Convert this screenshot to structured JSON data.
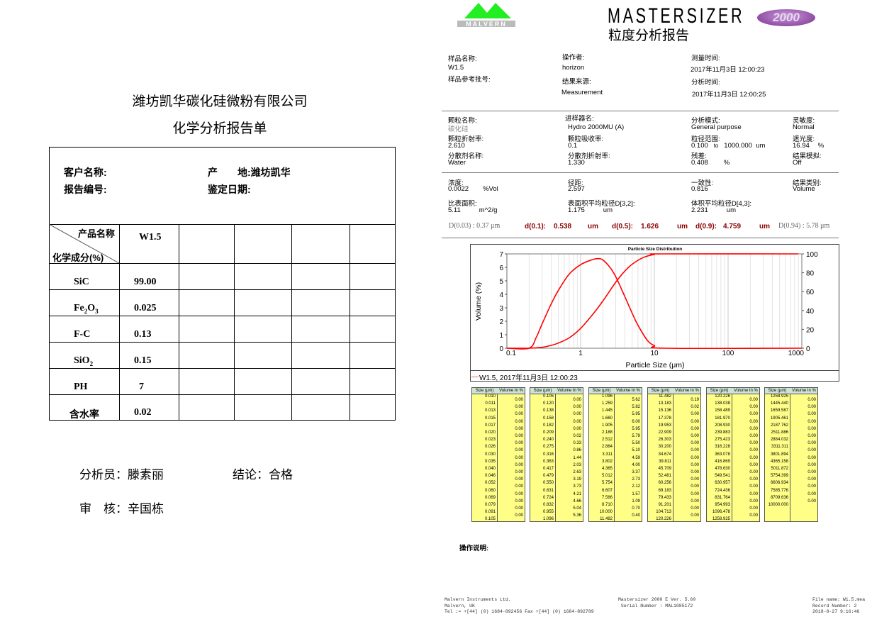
{
  "left": {
    "company": "潍坊凯华碳化硅微粉有限公司",
    "title": "化学分析报告单",
    "customer_label": "客户名称:",
    "report_no_label": "报告编号:",
    "origin_label": "产　　地:",
    "origin_value": "潍坊凯华",
    "date_label": "鉴定日期:",
    "header_product": "产品名称",
    "header_component": "化学成分(%)",
    "product": "W1.5",
    "rows": [
      {
        "name": "SiC",
        "value": "99.00"
      },
      {
        "name": "Fe2O3",
        "value": "0.025"
      },
      {
        "name": "F-C",
        "value": "0.13"
      },
      {
        "name": "SiO2",
        "value": "0.15"
      },
      {
        "name": "PH",
        "value": "7"
      },
      {
        "name": "含水率",
        "value": "0.02"
      }
    ],
    "analyst": "分析员：滕素丽",
    "conclusion": "结论：合格",
    "reviewer": "审　核：辛国栋"
  },
  "right": {
    "logo_text": "MALVERN",
    "brand": "MASTERSIZER",
    "brand_badge": "2000",
    "title": "粒度分析报告",
    "sample_name_label": "样品名称:",
    "sample_name": "W1.5",
    "sample_batch_label": "样品参考批号:",
    "operator_label": "操作者:",
    "operator": "horizon",
    "source_label": "结果来源:",
    "source": "Measurement",
    "measure_time_label": "测量时间:",
    "measure_time": "2017年11月3日 12:00:23",
    "analysis_time_label": "分析时间:",
    "analysis_time": "2017年11月3日 12:00:25",
    "particle_name_label": "颗粒名称:",
    "particle_name": "碳化硅",
    "accessory_label": "进样器名:",
    "accessory": "Hydro 2000MU (A)",
    "model_label": "分析模式:",
    "model": "General purpose",
    "sensitivity_label": "灵敏度:",
    "sensitivity": "Normal",
    "particle_ri_label": "颗粒折射率:",
    "particle_ri": "2.610",
    "absorption_label": "颗粒吸收率:",
    "absorption": "0.1",
    "size_range_label": "粒径范围:",
    "size_range_from": "0.100",
    "size_range_to_word": "to",
    "size_range_to": "1000.000",
    "size_range_unit": "um",
    "obscuration_label": "遮光度:",
    "obscuration": "16.94",
    "obscuration_unit": "%",
    "dispersant_label": "分散剂名称:",
    "dispersant": "Water",
    "dispersant_ri_label": "分散剂折射率:",
    "dispersant_ri": "1.330",
    "residual_label": "残差:",
    "residual": "0.408",
    "residual_unit": "%",
    "emulation_label": "结果模拟:",
    "emulation": "Off",
    "concentration_label": "浓度:",
    "concentration": "0.0022",
    "concentration_unit": "%Vol",
    "span_label": "径距:",
    "span": "2.597",
    "uniformity_label": "一致性:",
    "uniformity": "0.816",
    "result_units_label": "结果类别:",
    "result_units": "Volume",
    "ssa_label": "比表面积:",
    "ssa": "5.11",
    "ssa_unit": "m^2/g",
    "d32_label": "表面积平均粒径D[3,2]:",
    "d32": "1.175",
    "d32_unit": "um",
    "d43_label": "体积平均粒径D[4,3]:",
    "d43": "2.231",
    "d43_unit": "um",
    "d003": "D(0.03) : 0.37 μm",
    "d01_label": "d(0.1):",
    "d01": "0.538",
    "d05_label": "d(0.5):",
    "d05": "1.626",
    "d09_label": "d(0.9):",
    "d09": "4.759",
    "d_unit": "um",
    "d094": "D(0.94) : 5.78 μm",
    "notes_label": "操作说明:",
    "footer": {
      "col1": [
        "Malvern Instruments Ltd.",
        "Malvern, UK",
        "Tel := +[44] (0) 1684-892456 Fax +[44] (0) 1684-892789"
      ],
      "col2": [
        "Mastersizer 2000 E Ver. 5.60",
        "Serial Number : MAL1085172"
      ],
      "col3": [
        "File name: W1.5.mea",
        "Record Number: 2",
        "2018-8-27 9:16:46"
      ]
    },
    "table_headers": [
      "Size (μm)",
      "Volume In %"
    ],
    "tables": [
      {
        "sizes": [
          "0.010",
          "0.011",
          "0.013",
          "0.015",
          "0.017",
          "0.020",
          "0.023",
          "0.026",
          "0.030",
          "0.035",
          "0.040",
          "0.046",
          "0.052",
          "0.060",
          "0.069",
          "0.079",
          "0.091",
          "0.105"
        ],
        "volumes": [
          "0.00",
          "0.00",
          "0.00",
          "0.00",
          "0.00",
          "0.00",
          "0.00",
          "0.00",
          "0.00",
          "0.00",
          "0.00",
          "0.00",
          "0.00",
          "0.00",
          "0.00",
          "0.00",
          "0.00"
        ]
      },
      {
        "sizes": [
          "0.105",
          "0.120",
          "0.138",
          "0.158",
          "0.182",
          "0.209",
          "0.240",
          "0.275",
          "0.316",
          "0.363",
          "0.417",
          "0.479",
          "0.550",
          "0.631",
          "0.724",
          "0.832",
          "0.955",
          "1.096"
        ],
        "volumes": [
          "0.00",
          "0.00",
          "0.00",
          "0.00",
          "0.00",
          "0.02",
          "0.33",
          "0.86",
          "1.44",
          "2.03",
          "2.63",
          "3.19",
          "3.73",
          "4.21",
          "4.66",
          "5.04",
          "5.36"
        ]
      },
      {
        "sizes": [
          "1.096",
          "1.259",
          "1.445",
          "1.660",
          "1.905",
          "2.188",
          "2.512",
          "2.884",
          "3.311",
          "3.802",
          "4.365",
          "5.012",
          "5.754",
          "6.607",
          "7.586",
          "8.710",
          "10.000",
          "11.482"
        ],
        "volumes": [
          "5.62",
          "5.82",
          "5.95",
          "6.00",
          "5.95",
          "5.79",
          "5.50",
          "5.10",
          "4.59",
          "4.00",
          "3.37",
          "2.73",
          "2.12",
          "1.57",
          "1.09",
          "0.70",
          "0.40"
        ]
      },
      {
        "sizes": [
          "11.482",
          "13.183",
          "15.136",
          "17.378",
          "19.953",
          "22.909",
          "26.303",
          "30.200",
          "34.674",
          "39.811",
          "45.709",
          "52.481",
          "60.256",
          "69.183",
          "79.433",
          "91.201",
          "104.713",
          "120.226"
        ],
        "volumes": [
          "0.19",
          "0.02",
          "0.00",
          "0.00",
          "0.00",
          "0.00",
          "0.00",
          "0.00",
          "0.00",
          "0.00",
          "0.00",
          "0.00",
          "0.00",
          "0.00",
          "0.00",
          "0.00",
          "0.00"
        ]
      },
      {
        "sizes": [
          "120.226",
          "138.038",
          "158.489",
          "181.970",
          "208.930",
          "239.883",
          "275.423",
          "316.228",
          "363.078",
          "416.869",
          "478.630",
          "549.541",
          "630.957",
          "724.436",
          "831.764",
          "954.993",
          "1096.478",
          "1258.925"
        ],
        "volumes": [
          "0.00",
          "0.00",
          "0.00",
          "0.00",
          "0.00",
          "0.00",
          "0.00",
          "0.00",
          "0.00",
          "0.00",
          "0.00",
          "0.00",
          "0.00",
          "0.00",
          "0.00",
          "0.00",
          "0.00"
        ]
      },
      {
        "sizes": [
          "1258.925",
          "1445.440",
          "1659.587",
          "1905.461",
          "2187.762",
          "2511.886",
          "2884.032",
          "3311.311",
          "3801.894",
          "4365.158",
          "5011.872",
          "5754.399",
          "6606.934",
          "7585.776",
          "8709.636",
          "10000.000"
        ],
        "volumes": [
          "0.00",
          "0.00",
          "0.00",
          "0.00",
          "0.00",
          "0.00",
          "0.00",
          "0.00",
          "0.00",
          "0.00",
          "0.00",
          "0.00",
          "0.00",
          "0.00",
          "0.00"
        ]
      }
    ]
  },
  "chart_data": {
    "type": "line",
    "title": "Particle Size Distribution",
    "xlabel": "Particle Size (μm)",
    "ylabel": "Volume (%)",
    "x_scale": "log",
    "xlim": [
      0.1,
      1000
    ],
    "ylim": [
      0,
      7
    ],
    "y2lim": [
      0,
      100
    ],
    "x_ticks": [
      "0.1",
      "1",
      "10",
      "100",
      "1000"
    ],
    "y_ticks": [
      "0",
      "1",
      "2",
      "3",
      "4",
      "5",
      "6",
      "7"
    ],
    "y2_ticks": [
      "0",
      "20",
      "40",
      "60",
      "80",
      "100"
    ],
    "grid": "vertical",
    "color": "#ff0000",
    "legend": "W1.5, 2017年11月3日 12:00:23",
    "legend_position": "bottom",
    "series": [
      {
        "axis": "left",
        "x": [
          0.1,
          0.2,
          0.25,
          0.3,
          0.4,
          0.5,
          0.7,
          1,
          1.4,
          1.7,
          2,
          2.5,
          3,
          4,
          5,
          6,
          8,
          10,
          14,
          1000
        ],
        "y": [
          0,
          0,
          0.8,
          1.8,
          3.3,
          4.3,
          5.5,
          6.2,
          6.55,
          6.65,
          6.55,
          6.0,
          5.3,
          3.8,
          2.6,
          1.7,
          0.6,
          0.2,
          0,
          0
        ]
      },
      {
        "axis": "right",
        "x": [
          0.1,
          0.2,
          0.3,
          0.4,
          0.5,
          0.7,
          1,
          1.5,
          2,
          3,
          4,
          5,
          7,
          10,
          13,
          900
        ],
        "y": [
          0,
          0,
          1,
          3,
          5.5,
          11,
          21,
          37,
          50,
          70,
          82,
          89,
          96,
          99.5,
          100,
          100
        ]
      }
    ]
  }
}
